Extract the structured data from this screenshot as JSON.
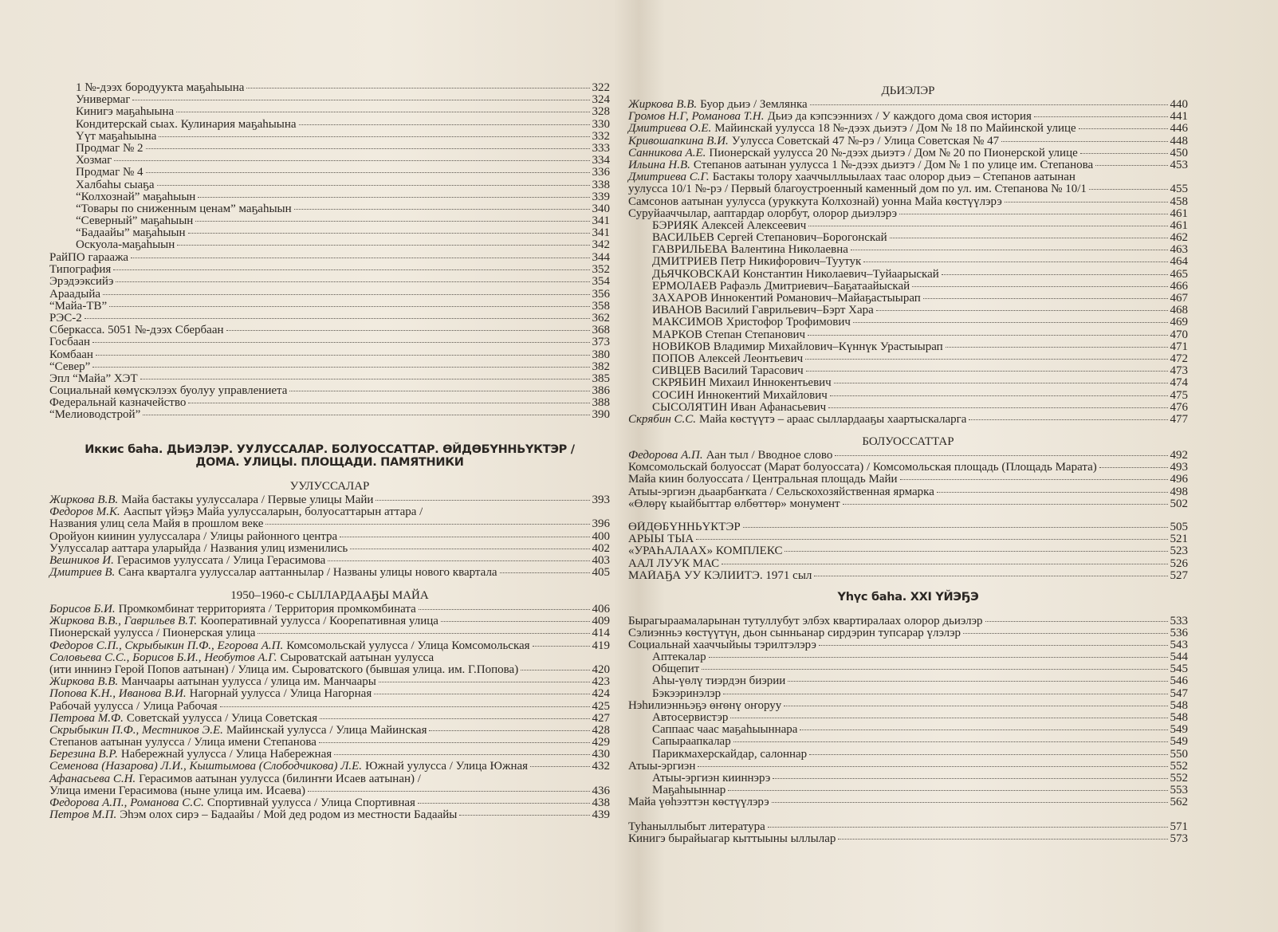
{
  "left": {
    "sections": [
      {
        "items": [
          {
            "title": "1 №-дээх бородуукта маҕаһыына",
            "page": 322
          },
          {
            "title": "Универмаг",
            "page": 324
          },
          {
            "title": "Кинигэ маҕаһыына",
            "page": 328
          },
          {
            "title": "Кондитерскай сыах. Кулинария маҕаһыына",
            "page": 330
          },
          {
            "title": "Үүт маҕаһыына",
            "page": 332
          },
          {
            "title": "Продмаг № 2",
            "page": 333
          },
          {
            "title": "Хозмаг",
            "page": 334
          },
          {
            "title": "Продмаг № 4",
            "page": 336
          },
          {
            "title": "Халбаһы сыаҕа",
            "page": 338
          },
          {
            "title": "“Колхознай” маҕаһыын",
            "page": 339
          },
          {
            "title": "“Товары по сниженным ценам” маҕаһыын",
            "page": 340
          },
          {
            "title": "“Северный” маҕаһыын",
            "page": 341
          },
          {
            "title": "“Бадаайы” маҕаһыын",
            "page": 341
          },
          {
            "title": "Оскуола-маҕаһыын",
            "page": 342
          }
        ]
      },
      {
        "items": [
          {
            "title": "РайПО гараажа",
            "page": 344
          },
          {
            "title": "Типография",
            "page": 352
          },
          {
            "title": "Эрэдээксийэ",
            "page": 354
          },
          {
            "title": "Араадыйа",
            "page": 356
          },
          {
            "title": "“Майа-ТВ”",
            "page": 358
          },
          {
            "title": "РЭС-2",
            "page": 362
          },
          {
            "title": "Сберкасса. 5051 №-дээх Сбербаан",
            "page": 368
          },
          {
            "title": "Госбаан",
            "page": 373
          },
          {
            "title": "Комбаан",
            "page": 380
          },
          {
            "title": "“Север”",
            "page": 382
          },
          {
            "title": "Эпл “Майа” ХЭТ",
            "page": 385
          },
          {
            "title": "Социальнай көмүскэлээх буолуу управлениета",
            "page": 386
          },
          {
            "title": "Федеральнай казначейство",
            "page": 388
          },
          {
            "title": "“Мелиоводстрой”",
            "page": 390
          }
        ]
      },
      {
        "part": [
          "Иккис баһа. ДЬИЭЛЭР. УУЛУССАЛАР. БОЛУОССАТТАР. ӨЙДӨБҮННЬҮКТЭР /",
          "ДОМА. УЛИЦЫ. ПЛОЩАДИ. ПАМЯТНИКИ"
        ],
        "heading": "УУЛУССАЛАР",
        "items": [
          {
            "author": "Жиркова В.В.",
            "title": "Майа бастакы уулуссалара / Первые улицы Майи",
            "page": 393
          },
          {
            "author": "Федоров М.К.",
            "title": [
              "Ааспыт үйэҕэ Майа уулуссаларын, болуосаттарын аттара /",
              "Названия улиц села Майя в прошлом веке"
            ],
            "page": 396
          },
          {
            "title": "Оройуон киинин уулуссалара / Улицы районного центра",
            "page": 400
          },
          {
            "title": "Уулуссалар ааттара уларыйда / Названия улиц изменились",
            "page": 402
          },
          {
            "author": "Вешников И.",
            "title": "Герасимов уулуссата / Улица Герасимова",
            "page": 403
          },
          {
            "author": "Дмитриев В.",
            "title": "Саҥа кварталга уулуссалар ааттаннылар / Названы улицы нового квартала",
            "page": 405
          }
        ]
      },
      {
        "heading": "1950–1960-с СЫЛЛАРДААҔЫ МАЙА",
        "items": [
          {
            "author": "Борисов Б.И.",
            "title": "Промкомбинат территорията / Территория промкомбината",
            "page": 406
          },
          {
            "author": "Жиркова В.В., Гаврильев В.Т.",
            "title": "Кооперативнай уулусса / Коорепативная улица",
            "page": 409
          },
          {
            "title": "Пионерскай уулусса / Пионерская улица",
            "page": 414
          },
          {
            "author": "Федоров С.П., Скрыбыкин П.Ф., Егорова А.П.",
            "title": "Комсомольскай уулусса / Улица Комсомольская",
            "page": 419
          },
          {
            "author": "Соловьева С.С., Борисов Б.И., Необутов А.Г.",
            "title": [
              "Сыроватскай аатынан уулусса",
              "(ити иннинэ Герой Попов аатынан) / Улица им. Сыроватского (бывшая улица. им. Г.Попова)"
            ],
            "page": 420
          },
          {
            "author": "Жиркова В.В.",
            "title": "Манчаары аатынан уулусса / улица им. Манчаары",
            "page": 423
          },
          {
            "author": "Попова К.Н., Иванова В.И.",
            "title": "Нагорнай уулусса / Улица Нагорная",
            "page": 424
          },
          {
            "title": "Рабочай уулусса / Улица Рабочая",
            "page": 425
          },
          {
            "author": "Петрова М.Ф.",
            "title": "Советскай уулусса / Улица Советская",
            "page": 427
          },
          {
            "author": "Скрыбыкин П.Ф., Местников Э.Е.",
            "title": "Майинскай уулусса / Улица Майинская",
            "page": 428
          },
          {
            "title": "Степанов аатынан уулусса / Улица имени Степанова",
            "page": 429
          },
          {
            "author": "Березина В.Р.",
            "title": "Набережнай уулусса / Улица Набережная",
            "page": 430
          },
          {
            "author": "Семенова (Назарова) Л.И., Кыштымова (Слободчикова) Л.Е.",
            "title": "Южнай уулусса / Улица Южная",
            "page": 432
          },
          {
            "author": "Афанасьева С.Н.",
            "title": [
              "Герасимов аатынан уулусса (билиҥҥи Исаев аатынан) /",
              "Улица имени Герасимова (ныне улица им. Исаева)"
            ],
            "page": 436
          },
          {
            "author": "Федорова А.П., Романова С.С.",
            "title": "Спортивнай уулусса / Улица Спортивная",
            "page": 438
          },
          {
            "author": "Петров М.П.",
            "title": "Эһэм олох сирэ – Бадаайы / Мой дед родом из местности Бадаайы",
            "page": 439
          }
        ]
      }
    ]
  },
  "right": {
    "sections": [
      {
        "heading": "ДЬИЭЛЭР",
        "items": [
          {
            "author": "Жиркова В.В.",
            "title": "Буор дьиэ / Землянка",
            "page": 440
          },
          {
            "author": "Громов Н.Г, Романова Т.Н.",
            "title": "Дьиэ да кэпсээнниэх / У каждого дома своя история",
            "page": 441
          },
          {
            "author": "Дмитриева О.Е.",
            "title": "Майинскай уулусса 18 №-дээх дьиэтэ / Дом № 18 по Майинской улице",
            "page": 446
          },
          {
            "author": "Кривошапкина В.И.",
            "title": "Уулусса Советскай 47 №-рэ / Улица Советская № 47",
            "page": 448
          },
          {
            "author": "Санникова А.Е.",
            "title": "Пионерскай уулусса 20 №-дээх дьиэтэ / Дом № 20 по Пионерской улице",
            "page": 450
          },
          {
            "author": "Ильина Н.В.",
            "title": "Степанов аатынан уулусса 1 №-дээх дьиэтэ / Дом № 1 по улице им. Степанова",
            "page": 453
          },
          {
            "author": "Дмитриева С.Г.",
            "title": [
              "Бастакы толору хааччыллыылаах таас олорор дьиэ – Степанов аатынан",
              "уулусса 10/1 №-рэ / Первый благоустроенный каменный дом по ул. им. Степанова № 10/1"
            ],
            "page": 455
          },
          {
            "title": "Самсонов аатынан уулусса (уруккута Колхознай) уонна Майа көстүүлэрэ",
            "page": 458
          },
          {
            "title": "Суруйааччылар, ааптардар олорбут, олорор дьиэлэрэ",
            "page": 461,
            "children": [
              {
                "title": "БЭРИЯК Алексей Алексеевич",
                "page": 461
              },
              {
                "title": "ВАСИЛЬЕВ Сергей Степанович–Борогонскай",
                "page": 462
              },
              {
                "title": "ГАВРИЛЬЕВА Валентина Николаевна",
                "page": 463
              },
              {
                "title": "ДМИТРИЕВ Петр Никифорович–Туутук",
                "page": 464
              },
              {
                "title": "ДЬЯЧКОВСКАЙ Константин Николаевич–Туйаарыскай",
                "page": 465
              },
              {
                "title": "ЕРМОЛАЕВ Рафаэль Дмитриевич–Баҕатаайыскай",
                "page": 466
              },
              {
                "title": "ЗАХАРОВ Иннокентий Романович–Майаҕастыырап",
                "page": 467
              },
              {
                "title": "ИВАНОВ Василий Гаврильевич–Бэрт Хара",
                "page": 468
              },
              {
                "title": "МАКСИМОВ Христофор Трофимович",
                "page": 469
              },
              {
                "title": "МАРКОВ Степан Степанович",
                "page": 470
              },
              {
                "title": "НОВИКОВ Владимир Михайлович–Күннүк Урастыырап",
                "page": 471
              },
              {
                "title": "ПОПОВ Алексей Леонтьевич",
                "page": 472
              },
              {
                "title": "СИВЦЕВ Василий Тарасович",
                "page": 473
              },
              {
                "title": "СКРЯБИН Михаил Иннокентьевич",
                "page": 474
              },
              {
                "title": "СОСИН Иннокентий Михайлович",
                "page": 475
              },
              {
                "title": "СЫСОЛЯТИН Иван Афанасьевич",
                "page": 476
              }
            ]
          },
          {
            "author": "Скрябин С.С.",
            "title": "Майа көстүүтэ – араас сыллардааҕы хаартыскаларга",
            "page": 477
          }
        ]
      },
      {
        "heading": "БОЛУОССАТТАР",
        "items": [
          {
            "author": "Федорова А.П.",
            "title": "Аан тыл / Вводное слово",
            "page": 492
          },
          {
            "title": "Комсомольскай болуоссат (Марат болуоссата) / Комсомольская площадь (Площадь Марата)",
            "page": 493
          },
          {
            "title": "Майа киин болуоссата / Центральная площадь Майи",
            "page": 496
          },
          {
            "title": "Атыы-эргиэн дьаарбаҥката / Сельскохозяйственная ярмарка",
            "page": 498
          },
          {
            "title": "«Өлөрү кыайбыттар өлбөттөр» монумент",
            "page": 502
          }
        ]
      },
      {
        "items": [
          {
            "title": "ӨЙДӨБҮННЬҮКТЭР",
            "page": 505
          },
          {
            "title": "АРЫЫ ТЫА",
            "page": 521
          },
          {
            "title": "«УРАҺАЛААХ» КОМПЛЕКС",
            "page": 523
          },
          {
            "title": "ААЛ ЛУУК МАС",
            "page": 526
          },
          {
            "title": "МАЙАҔА УУ КЭЛИИТЭ. 1971 сыл",
            "page": 527
          }
        ]
      },
      {
        "part": [
          "Үһүс баһа. XXI ҮЙЭҔЭ"
        ],
        "items": [
          {
            "title": "Бырагыраамаларынан тутуллубут элбэх квартиралаах олорор дьиэлэр",
            "page": 533
          },
          {
            "title": "Сэлиэнньэ көстүүтүн, дьон сынньанар сирдэрин тупсарар үлэлэр",
            "page": 536
          },
          {
            "title": "Социальнай хааччыйыы тэрилтэлэрэ",
            "page": 543,
            "children": [
              {
                "title": "Аптекалар",
                "page": 544
              },
              {
                "title": "Общепит",
                "page": 545
              },
              {
                "title": "Аһы-үөлү тиэрдэн биэрии",
                "page": 546
              },
              {
                "title": "Бэкээринэлэр",
                "page": 547
              }
            ]
          },
          {
            "title": "Нэһилиэнньэҕэ өҥөнү оҥоруу",
            "page": 548,
            "children": [
              {
                "title": "Автосервистэр",
                "page": 548
              },
              {
                "title": "Саппаас чаас маҕаһыыннара",
                "page": 549
              },
              {
                "title": "Сапыраапкалар",
                "page": 549
              },
              {
                "title": "Парикмахерскайдар, салоннар",
                "page": 550
              }
            ]
          },
          {
            "title": "Атыы-эргиэн",
            "page": 552,
            "children": [
              {
                "title": "Атыы-эргиэн кииннэрэ",
                "page": 552
              },
              {
                "title": "Маҕаһыыннар",
                "page": 553
              }
            ]
          },
          {
            "title": "Майа үөһээттэн көстүүлэрэ",
            "page": 562
          }
        ]
      },
      {
        "items": [
          {
            "title": "Туһаныллыбыт литература",
            "page": 571
          },
          {
            "title": "Кинигэ бырайыагар кыттыыны ыллылар",
            "page": 573
          }
        ]
      }
    ]
  }
}
